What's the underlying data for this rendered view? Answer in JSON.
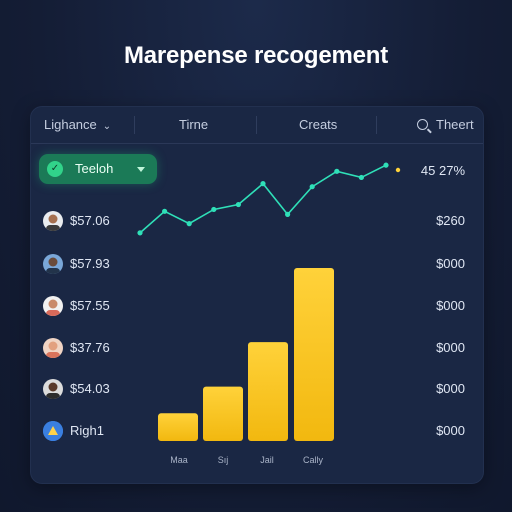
{
  "page": {
    "title": "Marepense recogement"
  },
  "tabs": [
    {
      "label": "Lighance",
      "has_dropdown": true
    },
    {
      "label": "Tirne"
    },
    {
      "label": "Creats"
    },
    {
      "label": "Theert",
      "icon": "search-icon"
    }
  ],
  "dropdown": {
    "label": "Teeloh",
    "icon": "check-icon"
  },
  "right_values": [
    "45 27%",
    "$260",
    "$000",
    "$000",
    "$000",
    "$000",
    "$000"
  ],
  "rows": [
    {
      "label": "$57.06",
      "avatar": "person-avatar"
    },
    {
      "label": "$57.93",
      "avatar": "person-avatar"
    },
    {
      "label": "$57.55",
      "avatar": "person-avatar"
    },
    {
      "label": "$37.76",
      "avatar": "person-avatar"
    },
    {
      "label": "$54.03",
      "avatar": "person-avatar"
    },
    {
      "label": "Righ1",
      "avatar": "app-icon"
    }
  ],
  "colors": {
    "accent_green": "#31d38a",
    "line_teal": "#2fe0b8",
    "bar_yellow": "#f6c21c",
    "panel": "#1a2744"
  },
  "chart_data": [
    {
      "type": "line",
      "x": [
        1,
        2,
        3,
        4,
        5,
        6,
        7,
        8,
        9,
        10,
        11
      ],
      "values": [
        0.1,
        0.45,
        0.25,
        0.48,
        0.56,
        0.9,
        0.4,
        0.85,
        1.1,
        1.0,
        1.2
      ],
      "ylim": [
        0,
        1.3
      ]
    },
    {
      "type": "bar",
      "categories": [
        "Maa",
        "Sıj",
        "Jail",
        "Cally"
      ],
      "values": [
        28,
        55,
        100,
        175
      ],
      "ylim": [
        0,
        180
      ]
    }
  ]
}
